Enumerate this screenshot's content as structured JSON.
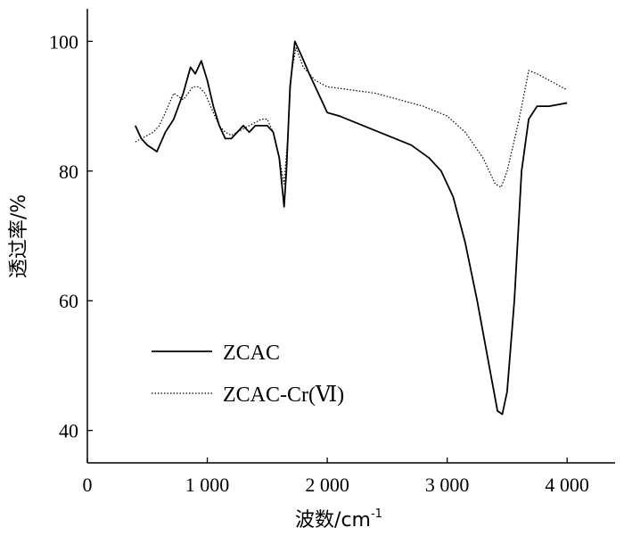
{
  "chart_data": {
    "type": "line",
    "xlabel": "波数/cm",
    "xlabel_superscript": "-1",
    "ylabel": "透过率/%",
    "xlim": [
      0,
      4400
    ],
    "ylim": [
      35,
      105
    ],
    "x_ticks": [
      0,
      1000,
      2000,
      3000,
      4000
    ],
    "x_tick_labels": [
      "0",
      "1 000",
      "2 000",
      "3 000",
      "4 000"
    ],
    "y_ticks": [
      40,
      60,
      80,
      100
    ],
    "y_tick_labels": [
      "40",
      "60",
      "80",
      "100"
    ],
    "legend_position": "lower-left",
    "series": [
      {
        "name": "ZCAC",
        "style": "solid",
        "points": [
          [
            400,
            87
          ],
          [
            450,
            85
          ],
          [
            500,
            84
          ],
          [
            580,
            83
          ],
          [
            650,
            86
          ],
          [
            720,
            88
          ],
          [
            800,
            92
          ],
          [
            860,
            96
          ],
          [
            900,
            95
          ],
          [
            950,
            97
          ],
          [
            1000,
            94
          ],
          [
            1050,
            90
          ],
          [
            1100,
            87
          ],
          [
            1150,
            85
          ],
          [
            1200,
            85
          ],
          [
            1250,
            86
          ],
          [
            1300,
            87
          ],
          [
            1350,
            86
          ],
          [
            1400,
            87
          ],
          [
            1450,
            87
          ],
          [
            1500,
            87
          ],
          [
            1550,
            86
          ],
          [
            1600,
            82
          ],
          [
            1640,
            74.5
          ],
          [
            1660,
            80
          ],
          [
            1690,
            93
          ],
          [
            1730,
            100
          ],
          [
            1780,
            98
          ],
          [
            1850,
            95
          ],
          [
            1950,
            91
          ],
          [
            2000,
            89
          ],
          [
            2100,
            88.5
          ],
          [
            2300,
            87
          ],
          [
            2500,
            85.5
          ],
          [
            2700,
            84
          ],
          [
            2850,
            82
          ],
          [
            2950,
            80
          ],
          [
            3050,
            76
          ],
          [
            3150,
            69
          ],
          [
            3250,
            60
          ],
          [
            3350,
            50
          ],
          [
            3420,
            43
          ],
          [
            3460,
            42.5
          ],
          [
            3500,
            46
          ],
          [
            3560,
            60
          ],
          [
            3620,
            80
          ],
          [
            3680,
            88
          ],
          [
            3750,
            90
          ],
          [
            3850,
            90
          ],
          [
            4000,
            90.5
          ]
        ]
      },
      {
        "name": "ZCAC-Cr(Ⅵ)",
        "style": "dotted",
        "points": [
          [
            400,
            84.5
          ],
          [
            450,
            85
          ],
          [
            500,
            85.5
          ],
          [
            550,
            86
          ],
          [
            600,
            87
          ],
          [
            650,
            89
          ],
          [
            720,
            92
          ],
          [
            800,
            91
          ],
          [
            880,
            93
          ],
          [
            930,
            93
          ],
          [
            980,
            92
          ],
          [
            1050,
            89
          ],
          [
            1100,
            87
          ],
          [
            1150,
            86
          ],
          [
            1200,
            85.5
          ],
          [
            1250,
            86
          ],
          [
            1300,
            86.5
          ],
          [
            1350,
            87
          ],
          [
            1400,
            87.5
          ],
          [
            1450,
            88
          ],
          [
            1500,
            88
          ],
          [
            1550,
            86
          ],
          [
            1600,
            82
          ],
          [
            1640,
            78
          ],
          [
            1670,
            85
          ],
          [
            1700,
            95
          ],
          [
            1740,
            99
          ],
          [
            1800,
            96
          ],
          [
            1900,
            94
          ],
          [
            2000,
            93
          ],
          [
            2200,
            92.5
          ],
          [
            2400,
            92
          ],
          [
            2600,
            91
          ],
          [
            2800,
            90
          ],
          [
            3000,
            88.5
          ],
          [
            3150,
            86
          ],
          [
            3300,
            82
          ],
          [
            3400,
            78
          ],
          [
            3450,
            77.5
          ],
          [
            3500,
            80
          ],
          [
            3600,
            88
          ],
          [
            3680,
            95.5
          ],
          [
            3750,
            95
          ],
          [
            3850,
            94
          ],
          [
            4000,
            92.5
          ]
        ]
      }
    ]
  }
}
